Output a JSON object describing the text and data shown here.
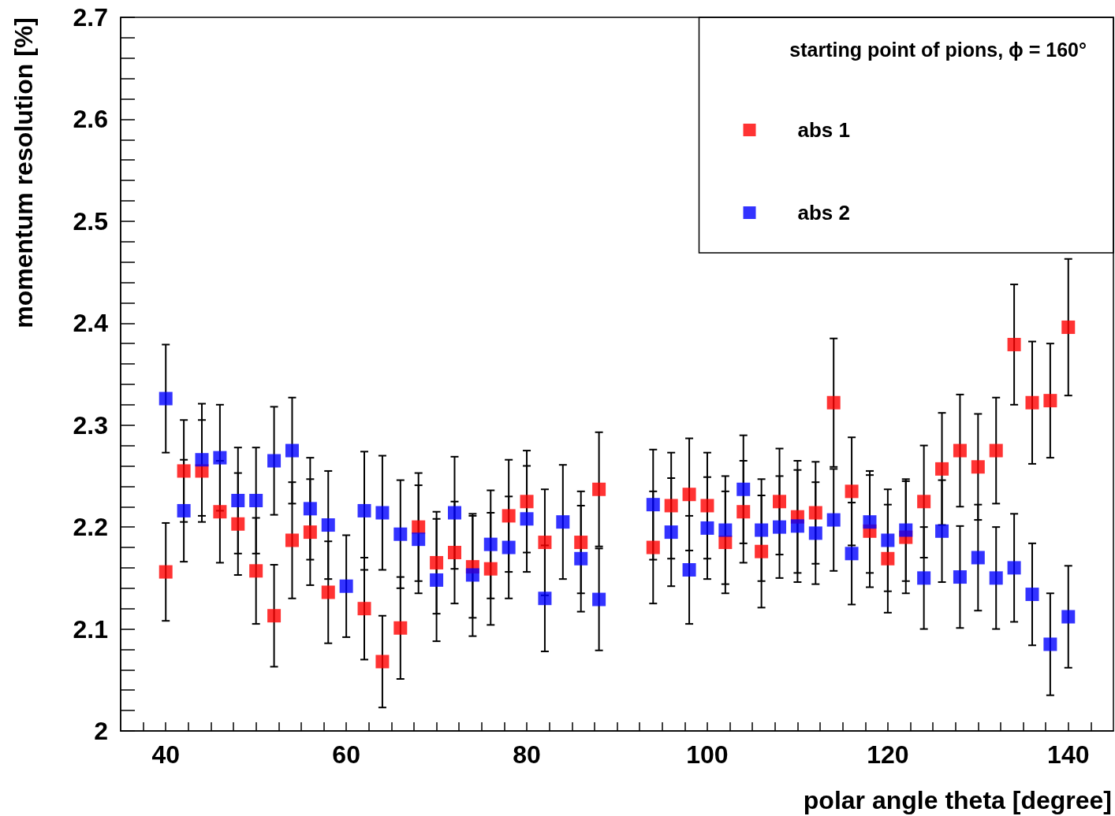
{
  "chart_data": {
    "type": "scatter",
    "xlabel": "polar angle theta [degree]",
    "ylabel": "momentum resolution [%]",
    "legend_title": "starting point of pions, ϕ = 160°",
    "x": [
      40,
      42,
      44,
      46,
      48,
      50,
      52,
      54,
      56,
      58,
      60,
      62,
      64,
      66,
      68,
      70,
      72,
      74,
      76,
      78,
      80,
      82,
      84,
      86,
      88,
      94,
      96,
      98,
      100,
      102,
      104,
      106,
      108,
      110,
      112,
      114,
      116,
      118,
      120,
      122,
      124,
      126,
      128,
      130,
      132,
      134,
      136,
      138,
      140
    ],
    "series": [
      {
        "name": "abs 1",
        "color": "#ff0000",
        "values": [
          2.156,
          2.255,
          2.255,
          2.215,
          2.203,
          2.157,
          2.113,
          2.187,
          2.195,
          2.136,
          null,
          2.12,
          2.068,
          2.101,
          2.2,
          2.165,
          2.175,
          2.161,
          2.159,
          2.211,
          2.225,
          2.185,
          null,
          2.185,
          2.237,
          2.18,
          2.221,
          2.232,
          2.221,
          2.185,
          2.215,
          2.176,
          2.225,
          2.21,
          2.214,
          2.322,
          2.235,
          2.196,
          2.169,
          2.19,
          2.225,
          2.257,
          2.275,
          2.259,
          2.275,
          2.379,
          2.322,
          2.324,
          2.396
        ],
        "errors": [
          0.048,
          0.05,
          0.05,
          0.05,
          0.05,
          0.052,
          0.05,
          0.057,
          0.052,
          0.05,
          null,
          0.05,
          0.045,
          0.05,
          0.053,
          0.05,
          0.05,
          0.05,
          0.055,
          0.055,
          0.05,
          0.052,
          null,
          0.05,
          0.056,
          0.055,
          0.052,
          0.055,
          0.052,
          0.05,
          0.05,
          0.055,
          0.052,
          0.055,
          0.05,
          0.063,
          0.053,
          0.055,
          0.053,
          0.055,
          0.055,
          0.055,
          0.055,
          0.052,
          0.052,
          0.059,
          0.06,
          0.056,
          0.067
        ]
      },
      {
        "name": "abs 2",
        "color": "#0000ff",
        "values": [
          2.326,
          2.216,
          2.266,
          2.268,
          2.226,
          2.226,
          2.265,
          2.275,
          2.218,
          2.202,
          2.142,
          2.216,
          2.214,
          2.193,
          2.188,
          2.148,
          2.214,
          2.153,
          2.183,
          2.18,
          2.208,
          2.13,
          2.205,
          2.169,
          2.129,
          2.222,
          2.195,
          2.158,
          2.199,
          2.197,
          2.237,
          2.197,
          2.2,
          2.201,
          2.194,
          2.207,
          2.174,
          2.205,
          2.187,
          2.197,
          2.15,
          2.196,
          2.151,
          2.17,
          2.15,
          2.16,
          2.134,
          2.085,
          2.112
        ],
        "errors": [
          0.053,
          0.05,
          0.055,
          0.052,
          0.052,
          0.052,
          0.053,
          0.052,
          0.05,
          0.053,
          0.05,
          0.058,
          0.056,
          0.053,
          0.053,
          0.06,
          0.055,
          0.06,
          0.053,
          0.05,
          0.052,
          0.052,
          0.056,
          0.052,
          0.05,
          0.054,
          0.053,
          0.053,
          0.05,
          0.053,
          0.053,
          0.05,
          0.05,
          0.055,
          0.05,
          0.05,
          0.05,
          0.05,
          0.05,
          0.05,
          0.05,
          0.05,
          0.05,
          0.052,
          0.05,
          0.053,
          0.05,
          0.05,
          0.05
        ]
      }
    ],
    "xlim": [
      35,
      145
    ],
    "xticks": [
      40,
      60,
      80,
      100,
      120,
      140
    ],
    "ylim": [
      2,
      2.7
    ],
    "yticks": [
      2,
      2.1,
      2.2,
      2.3,
      2.4,
      2.5,
      2.6,
      2.7
    ],
    "marker": "square",
    "grid": false,
    "legend": "top right"
  }
}
